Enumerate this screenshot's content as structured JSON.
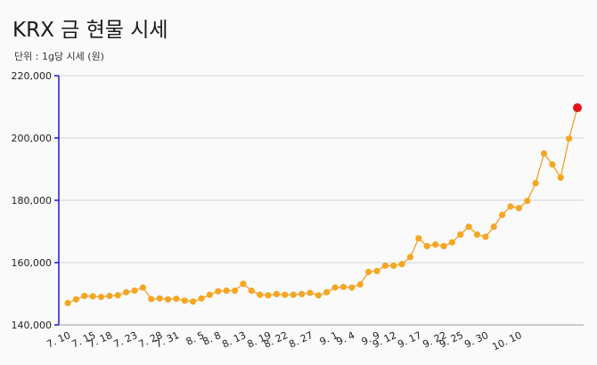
{
  "header": {
    "title": "KRX 금 현물 시세",
    "subtitle": "단위 : 1g당 시세 (원)"
  },
  "colors": {
    "line": "#f0a020",
    "point": "#f5a623",
    "last_point": "#e8141c",
    "grid": "#d4d4d4",
    "axis": "#1a1acc"
  },
  "chart_data": {
    "type": "line",
    "title": "KRX 금 현물 시세",
    "subtitle": "단위 : 1g당 시세 (원)",
    "ylim": [
      140000,
      220000
    ],
    "y_ticks": [
      "140,000",
      "160,000",
      "180,000",
      "200,000",
      "220,000"
    ],
    "y_tick_values": [
      140000,
      160000,
      180000,
      200000,
      220000
    ],
    "x_tick_labels": [
      "7. 10",
      "7. 15",
      "7. 18",
      "7. 23",
      "7. 28",
      "7. 31",
      "8. 5",
      "8. 8",
      "8. 13",
      "8. 19",
      "8. 22",
      "8. 27",
      "9. 1",
      "9. 4",
      "9. 9",
      "9. 12",
      "9. 17",
      "9. 22",
      "9. 25",
      "9. 30",
      "10. 10"
    ],
    "x_tick_indices": [
      0,
      3,
      5,
      8,
      11,
      13,
      16,
      18,
      21,
      24,
      26,
      29,
      32,
      34,
      37,
      39,
      42,
      45,
      47,
      50,
      54
    ],
    "grid": true,
    "legend": "none",
    "series": [
      {
        "values": [
          147000,
          148200,
          149300,
          149200,
          149000,
          149300,
          149500,
          150500,
          151000,
          152000,
          148300,
          148500,
          148200,
          148400,
          147800,
          147500,
          148500,
          149700,
          150800,
          151000,
          151000,
          153200,
          151000,
          149700,
          149500,
          149900,
          149700,
          149700,
          149900,
          150300,
          149500,
          150500,
          152000,
          152200,
          152000,
          153000,
          157000,
          157300,
          159000,
          159000,
          159500,
          161800,
          167800,
          165300,
          165800,
          165300,
          166500,
          169000,
          171500,
          169000,
          168300,
          171500,
          175300,
          178000,
          177500,
          179800,
          185500,
          195000,
          191500,
          187300,
          199800,
          209700
        ]
      }
    ]
  }
}
